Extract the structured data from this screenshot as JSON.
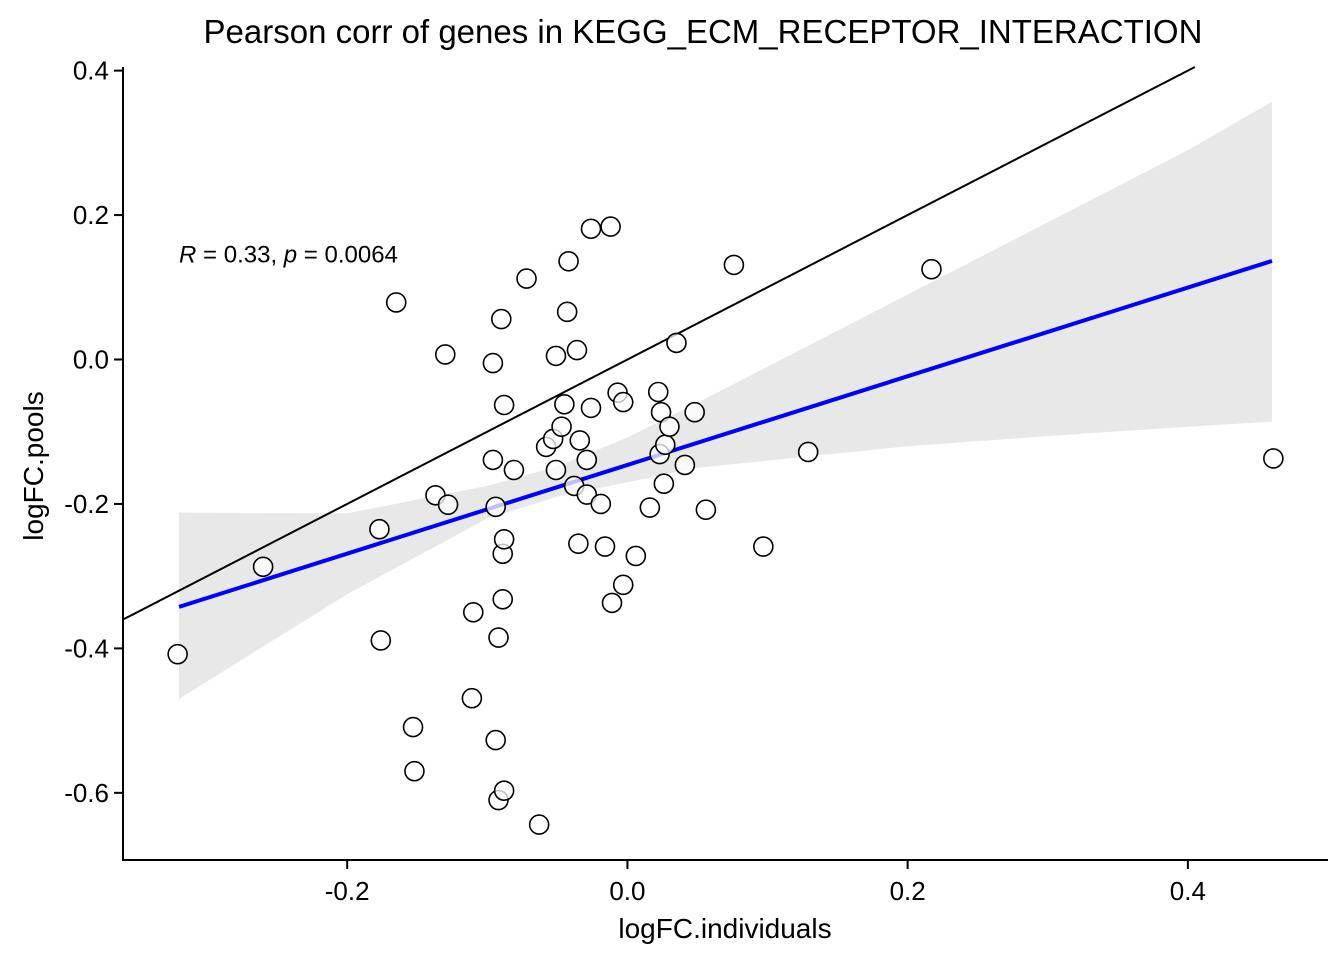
{
  "chart_data": {
    "type": "scatter",
    "title": "Pearson corr of genes in KEGG_ECM_RECEPTOR_INTERACTION",
    "xlabel": "logFC.individuals",
    "ylabel": "logFC.pools",
    "xlim": [
      -0.36,
      0.5
    ],
    "ylim": [
      -0.693,
      0.405
    ],
    "xticks": [
      -0.2,
      0.0,
      0.2,
      0.4
    ],
    "xtick_labels": [
      "-0.2",
      "0.0",
      "0.2",
      "0.4"
    ],
    "yticks": [
      -0.6,
      -0.4,
      -0.2,
      0.0,
      0.2,
      0.4
    ],
    "ytick_labels": [
      "-0.6",
      "-0.4",
      "-0.2",
      "0.0",
      "0.2",
      "0.4"
    ],
    "annotation": {
      "r_symbol": "R",
      "r_part": " = 0.33, ",
      "p_symbol": "p",
      "p_part": " = 0.0064",
      "x": -0.32,
      "y": 0.148
    },
    "identity_line": {
      "slope": 1,
      "intercept": 0,
      "color": "#000000"
    },
    "regression": {
      "color": "#0000ff",
      "x_range": [
        -0.32,
        0.46
      ],
      "slope": 0.614,
      "intercept": -0.146
    },
    "confidence_band": {
      "color": "#e8e8e8",
      "x": [
        -0.32,
        -0.2,
        -0.1,
        -0.05,
        0.0,
        0.05,
        0.1,
        0.2,
        0.3,
        0.4,
        0.46
      ],
      "upper": [
        -0.212,
        -0.213,
        -0.175,
        -0.148,
        -0.108,
        -0.06,
        -0.01,
        0.09,
        0.19,
        0.29,
        0.357
      ],
      "lower": [
        -0.47,
        -0.325,
        -0.22,
        -0.19,
        -0.17,
        -0.15,
        -0.14,
        -0.12,
        -0.106,
        -0.093,
        -0.086
      ]
    },
    "points": [
      {
        "x": -0.321,
        "y": -0.408
      },
      {
        "x": -0.26,
        "y": -0.287
      },
      {
        "x": -0.177,
        "y": -0.235
      },
      {
        "x": -0.176,
        "y": -0.389
      },
      {
        "x": -0.165,
        "y": 0.079
      },
      {
        "x": -0.153,
        "y": -0.509
      },
      {
        "x": -0.152,
        "y": -0.57
      },
      {
        "x": -0.137,
        "y": -0.188
      },
      {
        "x": -0.128,
        "y": -0.201
      },
      {
        "x": -0.13,
        "y": 0.007
      },
      {
        "x": -0.111,
        "y": -0.469
      },
      {
        "x": -0.11,
        "y": -0.35
      },
      {
        "x": -0.096,
        "y": -0.139
      },
      {
        "x": -0.096,
        "y": -0.005
      },
      {
        "x": -0.094,
        "y": -0.204
      },
      {
        "x": -0.094,
        "y": -0.527
      },
      {
        "x": -0.092,
        "y": -0.61
      },
      {
        "x": -0.092,
        "y": -0.385
      },
      {
        "x": -0.09,
        "y": 0.056
      },
      {
        "x": -0.089,
        "y": -0.332
      },
      {
        "x": -0.089,
        "y": -0.269
      },
      {
        "x": -0.088,
        "y": -0.249
      },
      {
        "x": -0.088,
        "y": -0.063
      },
      {
        "x": -0.088,
        "y": -0.597
      },
      {
        "x": -0.081,
        "y": -0.153
      },
      {
        "x": -0.072,
        "y": 0.112
      },
      {
        "x": -0.063,
        "y": -0.644
      },
      {
        "x": -0.058,
        "y": -0.121
      },
      {
        "x": -0.053,
        "y": -0.11
      },
      {
        "x": -0.051,
        "y": -0.153
      },
      {
        "x": -0.051,
        "y": 0.005
      },
      {
        "x": -0.047,
        "y": -0.093
      },
      {
        "x": -0.045,
        "y": -0.062
      },
      {
        "x": -0.043,
        "y": 0.066
      },
      {
        "x": -0.042,
        "y": 0.136
      },
      {
        "x": -0.038,
        "y": -0.175
      },
      {
        "x": -0.036,
        "y": 0.013
      },
      {
        "x": -0.035,
        "y": -0.255
      },
      {
        "x": -0.034,
        "y": -0.112
      },
      {
        "x": -0.029,
        "y": -0.187
      },
      {
        "x": -0.029,
        "y": -0.139
      },
      {
        "x": -0.026,
        "y": -0.067
      },
      {
        "x": -0.026,
        "y": 0.181
      },
      {
        "x": -0.019,
        "y": -0.2
      },
      {
        "x": -0.016,
        "y": -0.259
      },
      {
        "x": -0.012,
        "y": 0.184
      },
      {
        "x": -0.011,
        "y": -0.337
      },
      {
        "x": -0.007,
        "y": -0.046
      },
      {
        "x": -0.003,
        "y": -0.312
      },
      {
        "x": -0.003,
        "y": -0.059
      },
      {
        "x": 0.006,
        "y": -0.272
      },
      {
        "x": 0.016,
        "y": -0.205
      },
      {
        "x": 0.022,
        "y": -0.045
      },
      {
        "x": 0.023,
        "y": -0.131
      },
      {
        "x": 0.024,
        "y": -0.073
      },
      {
        "x": 0.026,
        "y": -0.172
      },
      {
        "x": 0.027,
        "y": -0.118
      },
      {
        "x": 0.03,
        "y": -0.093
      },
      {
        "x": 0.035,
        "y": 0.023
      },
      {
        "x": 0.041,
        "y": -0.146
      },
      {
        "x": 0.048,
        "y": -0.073
      },
      {
        "x": 0.056,
        "y": -0.208
      },
      {
        "x": 0.076,
        "y": 0.131
      },
      {
        "x": 0.097,
        "y": -0.259
      },
      {
        "x": 0.129,
        "y": -0.128
      },
      {
        "x": 0.217,
        "y": 0.125
      },
      {
        "x": 0.461,
        "y": -0.137
      }
    ]
  }
}
